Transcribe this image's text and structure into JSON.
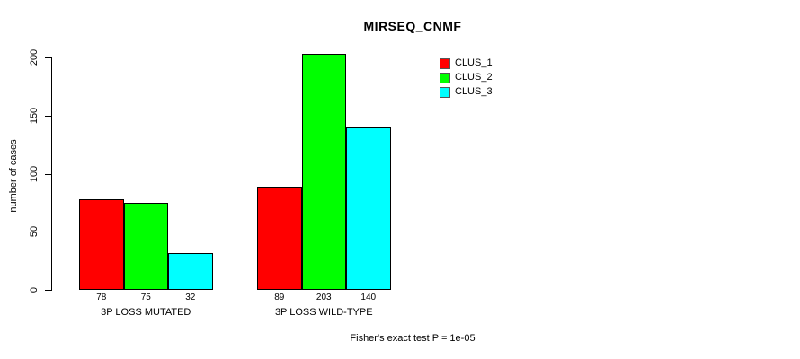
{
  "chart_data": {
    "type": "bar",
    "title": "MIRSEQ_CNMF",
    "ylabel": "number of cases",
    "footnote": "Fisher's exact test P = 1e-05",
    "categories": [
      "3P LOSS MUTATED",
      "3P LOSS WILD-TYPE"
    ],
    "series": [
      {
        "name": "CLUS_1",
        "color": "#FF0000",
        "values": [
          78,
          89
        ]
      },
      {
        "name": "CLUS_2",
        "color": "#00FF00",
        "values": [
          75,
          203
        ]
      },
      {
        "name": "CLUS_3",
        "color": "#00FFFF",
        "values": [
          32,
          140
        ]
      }
    ],
    "yticks": [
      0,
      50,
      100,
      150,
      200
    ],
    "ylim": [
      0,
      200
    ],
    "grid": false,
    "bar_value_labels": true,
    "legend_position": "top-right-inside"
  }
}
